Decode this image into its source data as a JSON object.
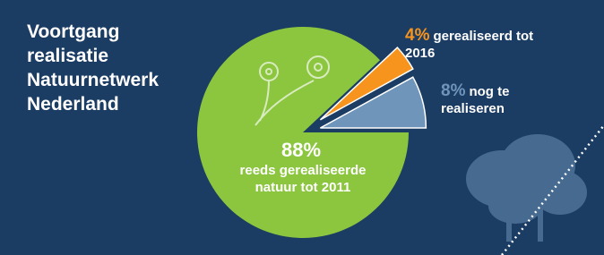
{
  "chart_data": {
    "type": "pie",
    "title": "Voortgang realisatie Natuurnetwerk Nederland",
    "categories": [
      "nog te realiseren",
      "gerealiseerd tot 2016",
      "reeds gerealiseerde natuur tot 2011"
    ],
    "values": [
      8,
      4,
      88
    ],
    "value_labels": [
      "8%",
      "4%",
      "88%"
    ],
    "colors": [
      "#6f95bb",
      "#f7941d",
      "#8cc63f"
    ]
  }
}
